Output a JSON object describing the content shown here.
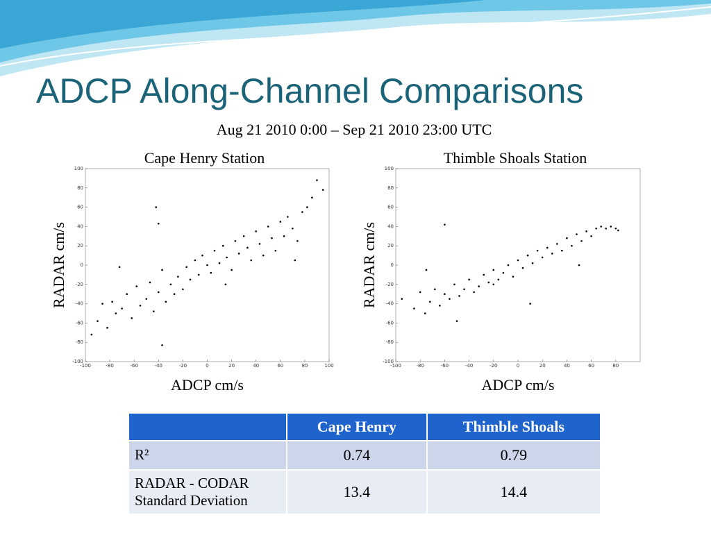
{
  "title": "ADCP Along-Channel Comparisons",
  "subtitle": "Aug 21 2010 0:00 – Sep 21 2010 23:00 UTC",
  "chart_data": [
    {
      "type": "scatter",
      "title": "Cape Henry Station",
      "xlabel": "ADCP cm/s",
      "ylabel": "RADAR cm/s",
      "color": "#000000",
      "x": [
        -95,
        -90,
        -86,
        -82,
        -78,
        -75,
        -70,
        -66,
        -62,
        -58,
        -55,
        -50,
        -47,
        -44,
        -40,
        -37,
        -34,
        -30,
        -27,
        -24,
        -20,
        -17,
        -14,
        -10,
        -7,
        -4,
        0,
        3,
        6,
        10,
        13,
        16,
        20,
        23,
        26,
        30,
        33,
        36,
        40,
        43,
        46,
        50,
        53,
        56,
        60,
        63,
        66,
        70,
        74,
        78,
        82,
        86,
        90,
        95,
        -42,
        -40,
        -72,
        -37,
        72,
        15
      ],
      "y": [
        -72,
        -58,
        -40,
        -65,
        -38,
        -50,
        -45,
        -30,
        -55,
        -22,
        -42,
        -35,
        -18,
        -48,
        -28,
        -5,
        -38,
        -20,
        -30,
        -12,
        -25,
        -2,
        -15,
        5,
        -10,
        10,
        0,
        -8,
        15,
        2,
        20,
        8,
        -5,
        25,
        12,
        30,
        18,
        5,
        35,
        22,
        10,
        40,
        28,
        15,
        45,
        30,
        50,
        38,
        25,
        55,
        60,
        70,
        88,
        78,
        60,
        43,
        -2,
        -83,
        5,
        -20
      ],
      "xlim": [
        -100,
        100
      ],
      "ylim": [
        -100,
        100
      ],
      "xticks": [
        -100,
        -80,
        -60,
        -40,
        -20,
        0,
        20,
        40,
        60,
        80,
        100
      ],
      "yticks": [
        -100,
        -80,
        -60,
        -40,
        -20,
        0,
        20,
        40,
        60,
        80,
        100
      ]
    },
    {
      "type": "scatter",
      "title": "Thimble Shoals Station",
      "xlabel": "ADCP cm/s",
      "ylabel": "RADAR cm/s",
      "color": "#000000",
      "x": [
        -95,
        -85,
        -80,
        -76,
        -72,
        -68,
        -64,
        -60,
        -56,
        -52,
        -48,
        -44,
        -40,
        -36,
        -32,
        -28,
        -24,
        -20,
        -16,
        -12,
        -8,
        -4,
        0,
        4,
        8,
        12,
        16,
        20,
        24,
        28,
        32,
        36,
        40,
        44,
        48,
        52,
        56,
        60,
        64,
        68,
        72,
        76,
        80,
        82,
        -60,
        -75,
        -50,
        10,
        50,
        -20
      ],
      "y": [
        -35,
        -45,
        -28,
        -50,
        -38,
        -25,
        -42,
        -30,
        -35,
        -20,
        -32,
        -25,
        -15,
        -28,
        -22,
        -10,
        -18,
        -5,
        -15,
        -8,
        0,
        -12,
        5,
        -3,
        10,
        2,
        15,
        8,
        18,
        12,
        22,
        15,
        28,
        20,
        32,
        25,
        35,
        30,
        38,
        40,
        38,
        40,
        38,
        36,
        42,
        -5,
        -58,
        -40,
        0,
        -20
      ],
      "xlim": [
        -100,
        100
      ],
      "ylim": [
        -100,
        100
      ],
      "xticks": [
        -100,
        -80,
        -60,
        -40,
        -20,
        0,
        20,
        40,
        60,
        80
      ],
      "yticks": [
        -100,
        -80,
        -60,
        -40,
        -20,
        0,
        20,
        40,
        60,
        80,
        100
      ]
    }
  ],
  "table": {
    "columns": [
      "Cape Henry",
      "Thimble Shoals"
    ],
    "rows": [
      {
        "label": "R²",
        "values": [
          0.74,
          0.79
        ]
      },
      {
        "label": "RADAR - CODAR Standard Deviation",
        "values": [
          13.4,
          14.4
        ]
      }
    ]
  }
}
